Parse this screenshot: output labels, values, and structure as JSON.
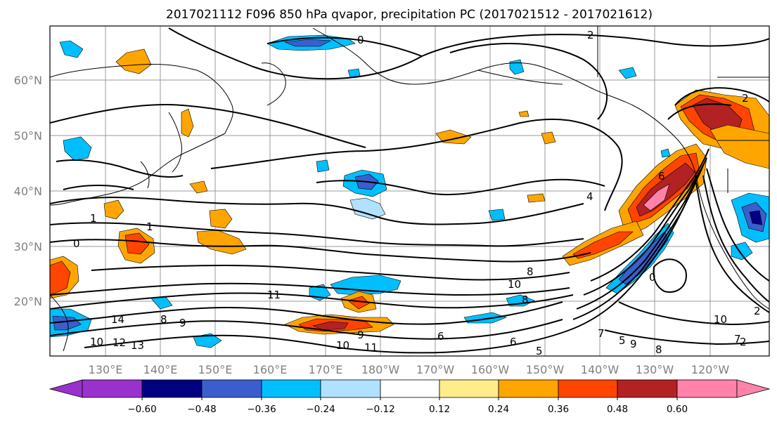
{
  "map": {
    "title": "2017021112 F096 850 hPa qvapor, precipitation PC (2017021512 - 2017021612)",
    "lat_labels": [
      "60°N",
      "50°N",
      "40°N",
      "30°N",
      "20°N"
    ],
    "lon_labels": [
      "130°E",
      "140°E",
      "150°E",
      "160°E",
      "170°E",
      "180°W",
      "170°W",
      "160°W",
      "150°W",
      "140°W",
      "130°W",
      "120°W"
    ],
    "contour_labels": [
      "0",
      "2",
      "2",
      "1",
      "1",
      "0",
      "0",
      "4",
      "6",
      "8",
      "10",
      "11",
      "10",
      "12",
      "13",
      "14",
      "8",
      "9",
      "11",
      "10",
      "9",
      "6",
      "5",
      "6",
      "8",
      "7",
      "5",
      "9",
      "8",
      "10",
      "2",
      "2",
      "7"
    ]
  },
  "colorbar": {
    "colors": [
      "#9932cc",
      "#000080",
      "#3a5fcd",
      "#00bfff",
      "#b0e2ff",
      "#ffffff",
      "#ffec8b",
      "#ffa500",
      "#ff4500",
      "#b22222",
      "#ff82ab"
    ],
    "tick_labels": [
      "−0.60",
      "−0.48",
      "−0.36",
      "−0.24",
      "−0.12",
      "0.12",
      "0.24",
      "0.36",
      "0.48",
      "0.60"
    ],
    "extend": "both"
  },
  "colors": {
    "coast": "#000000",
    "contour": "#000000",
    "grid": "#9a9a9a",
    "label": "#808080"
  }
}
